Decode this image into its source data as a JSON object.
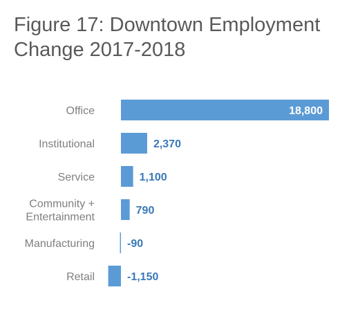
{
  "title": {
    "line1": "Figure 17: Downtown Employment",
    "line2": "Change 2017-2018"
  },
  "colors": {
    "bar": "#5b9bd5",
    "value_text": "#3a78b8",
    "inside_value_text": "#ffffff",
    "category_text": "#7f7f7f",
    "title_text": "#595959"
  },
  "chart_data": {
    "type": "bar",
    "orientation": "horizontal",
    "categories": [
      "Office",
      "Institutional",
      "Service",
      "Community + Entertainment",
      "Manufacturing",
      "Retail"
    ],
    "category_lines": [
      [
        "Office"
      ],
      [
        "Institutional"
      ],
      [
        "Service"
      ],
      [
        "Community +",
        "Entertainment"
      ],
      [
        "Manufacturing"
      ],
      [
        "Retail"
      ]
    ],
    "values": [
      18800,
      2370,
      1100,
      790,
      -90,
      -1150
    ],
    "value_labels": [
      "18,800",
      "2,370",
      "1,100",
      "790",
      "-90",
      "-1,150"
    ],
    "title": "Figure 17: Downtown Employment Change 2017-2018",
    "xlabel": "",
    "ylabel": "",
    "xlim": [
      -1150,
      18800
    ],
    "grid": false,
    "legend": "none"
  }
}
